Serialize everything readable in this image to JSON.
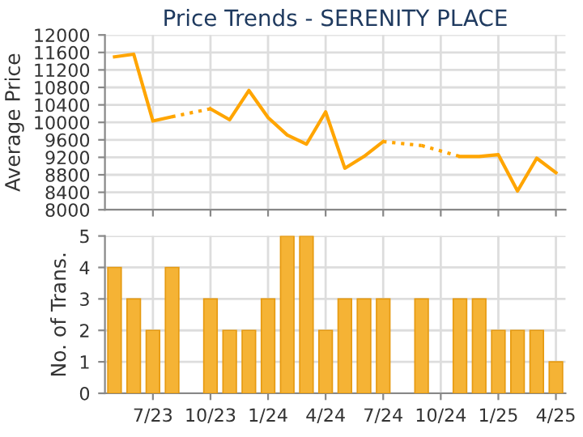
{
  "chart_data": [
    {
      "type": "line",
      "title": "Price Trends - SERENITY PLACE",
      "ylabel": "Average Price",
      "categories": [
        null,
        null,
        null,
        null,
        null,
        null,
        null,
        null,
        null,
        null,
        null,
        null,
        null,
        null,
        null,
        null,
        null,
        null,
        null,
        null,
        null,
        null,
        null,
        null
      ],
      "series": [
        {
          "color": "#ffa500",
          "values": [
            11500,
            11560,
            10030,
            10130,
            null,
            10310,
            10060,
            10730,
            10110,
            9710,
            9500,
            10240,
            8950,
            9220,
            9560,
            null,
            9470,
            null,
            9220,
            9220,
            9260,
            8430,
            9180,
            8850
          ]
        }
      ],
      "ylim": [
        8000,
        12000
      ],
      "yticks": [
        8000,
        8400,
        8800,
        9200,
        9600,
        10000,
        10400,
        10800,
        11200,
        11600,
        12000
      ],
      "grid": true,
      "tick_labels": "y",
      "marker": "none",
      "line_style": "solid"
    },
    {
      "type": "bar",
      "ylabel": "No. of Trans.",
      "categories": [
        null,
        null,
        "7/23",
        null,
        null,
        "10/23",
        null,
        null,
        "1/24",
        null,
        null,
        "4/24",
        null,
        null,
        "7/24",
        null,
        null,
        "10/24",
        null,
        null,
        "1/25",
        null,
        null,
        "4/25"
      ],
      "series": [
        {
          "color": "#f5b335",
          "values": [
            4,
            3,
            2,
            4,
            0,
            3,
            2,
            2,
            3,
            5,
            5,
            2,
            3,
            3,
            3,
            0,
            3,
            0,
            3,
            3,
            2,
            2,
            2,
            1
          ]
        }
      ],
      "ylim": [
        0,
        5
      ],
      "yticks": [
        0,
        1,
        2,
        3,
        4,
        5
      ],
      "grid": true
    }
  ]
}
